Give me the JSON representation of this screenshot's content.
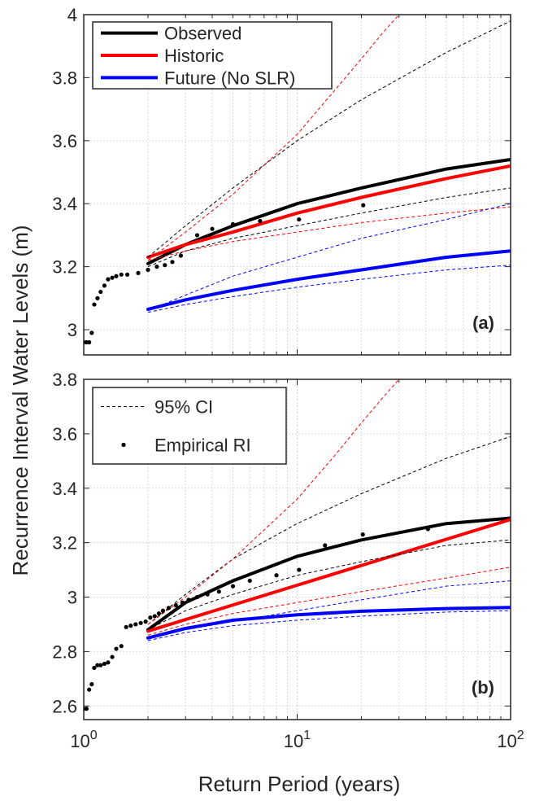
{
  "figure": {
    "ylabel": "Recurrence Interval Water Levels (m)",
    "xlabel": "Return Period (years)"
  },
  "chart_data": [
    {
      "type": "line",
      "panel_label": "(a)",
      "x_scale": "log",
      "xlim": [
        1,
        100
      ],
      "ylim": [
        2.92,
        4.0
      ],
      "yticks": [
        3.0,
        3.2,
        3.4,
        3.6,
        3.8,
        4.0
      ],
      "ytick_labels": [
        "3",
        "3.2",
        "3.4",
        "3.6",
        "3.8",
        "4"
      ],
      "grid": true,
      "legend": {
        "placement": "top-left",
        "entries": [
          {
            "label": "Observed",
            "color": "#000000",
            "style": "solid"
          },
          {
            "label": "Historic",
            "color": "#ff0000",
            "style": "solid"
          },
          {
            "label": "Future (No SLR)",
            "color": "#0000ff",
            "style": "solid"
          }
        ]
      },
      "series": [
        {
          "name": "Observed",
          "color": "#000000",
          "dash": false,
          "width": 4,
          "x": [
            2,
            3,
            5,
            10,
            20,
            50,
            100
          ],
          "y": [
            3.21,
            3.27,
            3.33,
            3.4,
            3.45,
            3.51,
            3.54
          ]
        },
        {
          "name": "Historic",
          "color": "#ff0000",
          "dash": false,
          "width": 4,
          "x": [
            2,
            3,
            5,
            10,
            20,
            50,
            100
          ],
          "y": [
            3.23,
            3.27,
            3.31,
            3.37,
            3.42,
            3.48,
            3.52
          ]
        },
        {
          "name": "Future (No SLR)",
          "color": "#0000ff",
          "dash": false,
          "width": 4,
          "x": [
            2,
            3,
            5,
            10,
            20,
            50,
            100
          ],
          "y": [
            3.065,
            3.095,
            3.125,
            3.16,
            3.19,
            3.23,
            3.25
          ]
        },
        {
          "name": "",
          "color": "#000000",
          "dash": true,
          "width": 1,
          "x": [
            2,
            3,
            5,
            10,
            20,
            50,
            100
          ],
          "y": [
            3.23,
            3.33,
            3.45,
            3.6,
            3.73,
            3.88,
            3.98
          ]
        },
        {
          "name": "",
          "color": "#000000",
          "dash": true,
          "width": 1,
          "x": [
            2,
            3,
            5,
            10,
            20,
            50,
            100
          ],
          "y": [
            3.2,
            3.25,
            3.29,
            3.33,
            3.37,
            3.42,
            3.45
          ]
        },
        {
          "name": "",
          "color": "#ff0000",
          "dash": true,
          "width": 1,
          "x": [
            2,
            3,
            5,
            10,
            15,
            20,
            25,
            30
          ],
          "y": [
            3.22,
            3.31,
            3.43,
            3.62,
            3.76,
            3.86,
            3.94,
            4.0
          ]
        },
        {
          "name": "",
          "color": "#ff0000",
          "dash": true,
          "width": 1,
          "x": [
            2,
            3,
            5,
            10,
            20,
            50,
            100
          ],
          "y": [
            3.22,
            3.25,
            3.28,
            3.31,
            3.34,
            3.37,
            3.39
          ]
        },
        {
          "name": "",
          "color": "#0000ff",
          "dash": true,
          "width": 1,
          "x": [
            2,
            3,
            5,
            10,
            20,
            50,
            100
          ],
          "y": [
            3.06,
            3.11,
            3.17,
            3.23,
            3.29,
            3.35,
            3.4
          ]
        },
        {
          "name": "",
          "color": "#0000ff",
          "dash": true,
          "width": 1,
          "x": [
            2,
            3,
            5,
            10,
            20,
            50,
            100
          ],
          "y": [
            3.055,
            3.08,
            3.105,
            3.135,
            3.16,
            3.19,
            3.205
          ]
        }
      ],
      "empirical": {
        "x": [
          1.0,
          1.03,
          1.06,
          1.09,
          1.12,
          1.16,
          1.2,
          1.25,
          1.3,
          1.36,
          1.42,
          1.5,
          1.6,
          1.8,
          2.0,
          2.2,
          2.4,
          2.6,
          2.85,
          3.4,
          4.0,
          5.0,
          6.7,
          10.2,
          20.4
        ],
        "y": [
          2.96,
          2.96,
          2.96,
          2.99,
          3.08,
          3.1,
          3.12,
          3.14,
          3.16,
          3.165,
          3.17,
          3.175,
          3.175,
          3.18,
          3.19,
          3.2,
          3.205,
          3.215,
          3.235,
          3.3,
          3.32,
          3.335,
          3.345,
          3.35,
          3.395
        ]
      }
    },
    {
      "type": "line",
      "panel_label": "(b)",
      "x_scale": "log",
      "xlim": [
        1,
        100
      ],
      "xticks": [
        1,
        10,
        100
      ],
      "xtick_labels": [
        "10^0",
        "10^1",
        "10^2"
      ],
      "ylim": [
        2.55,
        3.8
      ],
      "yticks": [
        2.6,
        2.8,
        3.0,
        3.2,
        3.4,
        3.6,
        3.8
      ],
      "ytick_labels": [
        "2.6",
        "2.8",
        "3",
        "3.2",
        "3.4",
        "3.6",
        "3.8"
      ],
      "grid": true,
      "legend": {
        "placement": "top-left",
        "entries": [
          {
            "label": "95% CI",
            "color": "#000000",
            "style": "dashed"
          },
          {
            "label": "Empirical RI",
            "color": "#000000",
            "style": "marker"
          }
        ]
      },
      "series": [
        {
          "name": "Observed",
          "color": "#000000",
          "dash": false,
          "width": 4,
          "x": [
            2,
            3,
            5,
            10,
            20,
            50,
            100
          ],
          "y": [
            2.88,
            2.98,
            3.06,
            3.15,
            3.21,
            3.27,
            3.29
          ]
        },
        {
          "name": "Historic",
          "color": "#ff0000",
          "dash": false,
          "width": 4,
          "x": [
            2,
            100
          ],
          "y": [
            2.875,
            3.285
          ]
        },
        {
          "name": "Future (No SLR)",
          "color": "#0000ff",
          "dash": false,
          "width": 4,
          "x": [
            2,
            3,
            5,
            10,
            20,
            50,
            100
          ],
          "y": [
            2.85,
            2.885,
            2.915,
            2.935,
            2.948,
            2.958,
            2.962
          ]
        },
        {
          "name": "",
          "color": "#000000",
          "dash": true,
          "width": 1,
          "x": [
            2,
            3,
            5,
            10,
            20,
            50,
            100
          ],
          "y": [
            2.9,
            3.01,
            3.14,
            3.27,
            3.38,
            3.51,
            3.59
          ]
        },
        {
          "name": "",
          "color": "#000000",
          "dash": true,
          "width": 1,
          "x": [
            2,
            3,
            5,
            10,
            20,
            50,
            100
          ],
          "y": [
            2.88,
            2.95,
            3.01,
            3.08,
            3.13,
            3.19,
            3.21
          ]
        },
        {
          "name": "",
          "color": "#ff0000",
          "dash": true,
          "width": 1,
          "x": [
            2,
            3,
            5,
            10,
            15,
            20,
            25,
            30
          ],
          "y": [
            2.9,
            3.0,
            3.14,
            3.36,
            3.52,
            3.64,
            3.73,
            3.8
          ]
        },
        {
          "name": "",
          "color": "#ff0000",
          "dash": true,
          "width": 1,
          "x": [
            2,
            3,
            5,
            10,
            20,
            50,
            100
          ],
          "y": [
            2.86,
            2.9,
            2.94,
            2.98,
            3.02,
            3.07,
            3.11
          ]
        },
        {
          "name": "",
          "color": "#0000ff",
          "dash": true,
          "width": 1,
          "x": [
            2,
            3,
            5,
            10,
            20,
            50,
            100
          ],
          "y": [
            2.85,
            2.88,
            2.91,
            2.95,
            2.99,
            3.04,
            3.06
          ]
        },
        {
          "name": "",
          "color": "#0000ff",
          "dash": true,
          "width": 1,
          "x": [
            2,
            3,
            5,
            10,
            20,
            50,
            100
          ],
          "y": [
            2.84,
            2.87,
            2.895,
            2.915,
            2.93,
            2.945,
            2.95
          ]
        }
      ],
      "empirical": {
        "x": [
          1.0,
          1.03,
          1.06,
          1.09,
          1.12,
          1.16,
          1.2,
          1.25,
          1.3,
          1.36,
          1.42,
          1.5,
          1.58,
          1.66,
          1.75,
          1.85,
          1.95,
          2.05,
          2.15,
          2.25,
          2.35,
          2.5,
          2.7,
          2.9,
          3.1,
          3.4,
          3.8,
          4.3,
          5.0,
          6.0,
          8.0,
          10.2,
          13.5,
          20.3,
          41
        ],
        "y": [
          2.59,
          2.59,
          2.66,
          2.68,
          2.74,
          2.75,
          2.75,
          2.755,
          2.76,
          2.78,
          2.81,
          2.82,
          2.89,
          2.895,
          2.9,
          2.905,
          2.91,
          2.925,
          2.93,
          2.94,
          2.95,
          2.96,
          2.97,
          2.98,
          2.99,
          3.0,
          3.01,
          3.02,
          3.04,
          3.06,
          3.08,
          3.1,
          3.19,
          3.23,
          3.25
        ]
      }
    }
  ]
}
